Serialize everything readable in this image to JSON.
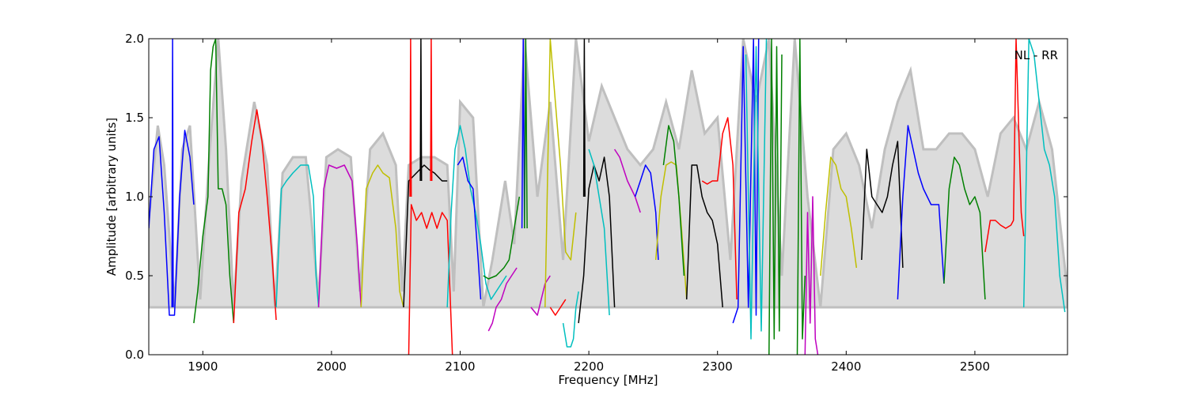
{
  "chart_data": {
    "type": "line",
    "title": "",
    "annotation": "NL - RR",
    "xlabel": "Frequency [MHz]",
    "ylabel": "Amplitude [arbitrary units]",
    "xlim": [
      1858,
      2572
    ],
    "ylim": [
      0.0,
      2.0
    ],
    "x_ticks": [
      1900,
      2000,
      2100,
      2200,
      2300,
      2400,
      2500
    ],
    "y_ticks": [
      0.0,
      0.5,
      1.0,
      1.5,
      2.0
    ],
    "x_tick_labels": [
      "1900",
      "2000",
      "2100",
      "2200",
      "2300",
      "2400",
      "2500"
    ],
    "y_tick_labels": [
      "0.0",
      "0.5",
      "1.0",
      "1.5",
      "2.0"
    ],
    "grid": false,
    "colors": {
      "envelope": "#bfbfbf",
      "blue": "#0000ff",
      "green": "#008000",
      "red": "#ff0000",
      "cyan": "#00bfbf",
      "magenta": "#bf00bf",
      "yellow": "#bfbf00",
      "black": "#000000"
    },
    "series": [
      {
        "color": "envelope",
        "x": [
          1858,
          1865,
          1870,
          1878,
          1884,
          1890,
          1898,
          1905,
          1912,
          1918,
          1924,
          1930,
          1940,
          1950,
          1956,
          1962,
          1970,
          1980,
          1990,
          1996,
          2005,
          2015,
          2022,
          2030,
          2040,
          2050,
          2055,
          2060,
          2070,
          2080,
          2090,
          2095,
          2100,
          2110,
          2118,
          2125,
          2135,
          2142,
          2150,
          2160,
          2170,
          2180,
          2190,
          2200,
          2210,
          2220,
          2230,
          2240,
          2250,
          2260,
          2270,
          2280,
          2290,
          2300,
          2310,
          2320,
          2330,
          2340,
          2350,
          2360,
          2370,
          2380,
          2390,
          2400,
          2410,
          2420,
          2430,
          2440,
          2450,
          2460,
          2470,
          2480,
          2490,
          2500,
          2510,
          2520,
          2530,
          2540,
          2550,
          2560,
          2572
        ],
        "y": [
          0.85,
          1.45,
          1.2,
          0.3,
          1.3,
          1.45,
          0.35,
          1.25,
          2.0,
          1.3,
          0.3,
          1.1,
          1.6,
          1.2,
          0.3,
          1.15,
          1.25,
          1.25,
          0.35,
          1.25,
          1.3,
          1.25,
          0.4,
          1.3,
          1.4,
          1.2,
          0.4,
          1.2,
          1.25,
          1.25,
          1.2,
          0.4,
          1.6,
          1.5,
          0.3,
          0.6,
          1.1,
          0.7,
          2.0,
          1.0,
          1.6,
          0.6,
          2.0,
          1.35,
          1.7,
          1.5,
          1.3,
          1.2,
          1.3,
          1.6,
          1.3,
          1.8,
          1.4,
          1.5,
          0.6,
          2.0,
          1.6,
          2.0,
          0.5,
          2.0,
          1.0,
          0.3,
          1.3,
          1.4,
          1.2,
          0.8,
          1.3,
          1.6,
          1.8,
          1.3,
          1.3,
          1.4,
          1.4,
          1.3,
          1.0,
          1.4,
          1.5,
          1.3,
          1.6,
          1.3,
          0.4
        ]
      },
      {
        "color": "blue",
        "x": [
          1858,
          1862,
          1866,
          1870,
          1874,
          1878,
          1882,
          1886,
          1890,
          1893
        ],
        "y": [
          0.8,
          1.3,
          1.38,
          0.9,
          0.25,
          0.25,
          1.0,
          1.42,
          1.25,
          0.95
        ]
      },
      {
        "color": "blue",
        "x": [
          1876,
          1876.5,
          1877
        ],
        "y": [
          0.3,
          2.0,
          0.3
        ]
      },
      {
        "color": "green",
        "x": [
          1893,
          1896,
          1900,
          1904,
          1906,
          1908,
          1910,
          1912,
          1915,
          1918,
          1921,
          1924
        ],
        "y": [
          0.2,
          0.4,
          0.75,
          1.0,
          1.8,
          1.95,
          2.0,
          1.05,
          1.05,
          0.95,
          0.5,
          0.2
        ]
      },
      {
        "color": "red",
        "x": [
          1924,
          1928,
          1933,
          1938,
          1942,
          1946,
          1950,
          1954,
          1957
        ],
        "y": [
          0.2,
          0.9,
          1.05,
          1.35,
          1.55,
          1.35,
          1.0,
          0.6,
          0.22
        ]
      },
      {
        "color": "cyan",
        "x": [
          1957,
          1961,
          1965,
          1970,
          1976,
          1982,
          1986,
          1988,
          1990
        ],
        "y": [
          0.3,
          1.05,
          1.1,
          1.15,
          1.2,
          1.2,
          1.0,
          0.5,
          0.3
        ]
      },
      {
        "color": "magenta",
        "x": [
          1990,
          1994,
          1998,
          2004,
          2010,
          2016,
          2020,
          2023
        ],
        "y": [
          0.3,
          1.05,
          1.2,
          1.18,
          1.2,
          1.1,
          0.7,
          0.3
        ]
      },
      {
        "color": "yellow",
        "x": [
          2023,
          2027,
          2032,
          2036,
          2040,
          2045,
          2050,
          2053,
          2056
        ],
        "y": [
          0.3,
          1.05,
          1.15,
          1.2,
          1.15,
          1.12,
          0.8,
          0.4,
          0.3
        ]
      },
      {
        "color": "black",
        "x": [
          2056,
          2060,
          2066,
          2072,
          2076,
          2080,
          2086,
          2090
        ],
        "y": [
          0.3,
          1.1,
          1.15,
          1.2,
          1.17,
          1.15,
          1.1,
          1.1
        ]
      },
      {
        "color": "red",
        "x": [
          2060,
          2062,
          2066,
          2070,
          2074,
          2078,
          2082,
          2086,
          2090,
          2094
        ],
        "y": [
          0.0,
          0.95,
          0.85,
          0.9,
          0.8,
          0.9,
          0.8,
          0.9,
          0.85,
          0.0
        ]
      },
      {
        "color": "red",
        "x": [
          2061,
          2061.5,
          2062
        ],
        "y": [
          1.0,
          2.0,
          1.0
        ]
      },
      {
        "color": "black",
        "x": [
          2069,
          2069.5,
          2070
        ],
        "y": [
          1.1,
          2.0,
          1.1
        ]
      },
      {
        "color": "red",
        "x": [
          2077,
          2077.5,
          2078
        ],
        "y": [
          1.1,
          2.0,
          1.1
        ]
      },
      {
        "color": "cyan",
        "x": [
          2090,
          2093,
          2096,
          2100,
          2104,
          2108,
          2112
        ],
        "y": [
          0.3,
          0.9,
          1.3,
          1.45,
          1.3,
          1.05,
          0.9
        ]
      },
      {
        "color": "blue",
        "x": [
          2098,
          2102,
          2106,
          2110,
          2114,
          2116
        ],
        "y": [
          1.2,
          1.25,
          1.1,
          1.05,
          0.6,
          0.35
        ]
      },
      {
        "color": "cyan",
        "x": [
          2112,
          2116,
          2120,
          2124,
          2128,
          2132,
          2136
        ],
        "y": [
          0.9,
          0.7,
          0.45,
          0.35,
          0.4,
          0.45,
          0.5
        ]
      },
      {
        "color": "magenta",
        "x": [
          2122,
          2125,
          2128,
          2132,
          2136,
          2140,
          2144
        ],
        "y": [
          0.15,
          0.2,
          0.3,
          0.35,
          0.45,
          0.5,
          0.55
        ]
      },
      {
        "color": "green",
        "x": [
          2118,
          2122,
          2128,
          2134,
          2138,
          2142,
          2146
        ],
        "y": [
          0.5,
          0.48,
          0.5,
          0.55,
          0.6,
          0.8,
          1.0
        ]
      },
      {
        "color": "blue",
        "x": [
          2148,
          2149,
          2150
        ],
        "y": [
          0.8,
          2.0,
          0.8
        ]
      },
      {
        "color": "green",
        "x": [
          2150,
          2151,
          2152
        ],
        "y": [
          0.8,
          2.0,
          0.8
        ]
      },
      {
        "color": "magenta",
        "x": [
          2155,
          2160,
          2166,
          2170
        ],
        "y": [
          0.3,
          0.25,
          0.45,
          0.5
        ]
      },
      {
        "color": "yellow",
        "x": [
          2166,
          2170,
          2174,
          2178,
          2182,
          2186,
          2190
        ],
        "y": [
          0.3,
          2.0,
          1.6,
          1.2,
          0.65,
          0.6,
          0.9
        ]
      },
      {
        "color": "red",
        "x": [
          2170,
          2174,
          2178,
          2182
        ],
        "y": [
          0.3,
          0.25,
          0.3,
          0.35
        ]
      },
      {
        "color": "cyan",
        "x": [
          2180,
          2183,
          2186,
          2188,
          2190,
          2192
        ],
        "y": [
          0.2,
          0.05,
          0.05,
          0.1,
          0.3,
          0.4
        ]
      },
      {
        "color": "black",
        "x": [
          2192,
          2196,
          2200,
          2204,
          2208,
          2212,
          2216,
          2220
        ],
        "y": [
          0.2,
          0.5,
          1.05,
          1.2,
          1.1,
          1.25,
          1.0,
          0.3
        ]
      },
      {
        "color": "black",
        "x": [
          2196,
          2196.5,
          2197
        ],
        "y": [
          1.0,
          2.0,
          1.0
        ]
      },
      {
        "color": "cyan",
        "x": [
          2200,
          2204,
          2208,
          2212,
          2216
        ],
        "y": [
          1.3,
          1.2,
          1.0,
          0.8,
          0.25
        ]
      },
      {
        "color": "magenta",
        "x": [
          2220,
          2224,
          2230,
          2236,
          2240
        ],
        "y": [
          1.3,
          1.25,
          1.1,
          1.0,
          0.9
        ]
      },
      {
        "color": "blue",
        "x": [
          2236,
          2240,
          2244,
          2248,
          2252,
          2254
        ],
        "y": [
          1.0,
          1.1,
          1.2,
          1.15,
          0.9,
          0.6
        ]
      },
      {
        "color": "yellow",
        "x": [
          2252,
          2256,
          2260,
          2264,
          2268,
          2272,
          2276
        ],
        "y": [
          0.6,
          1.0,
          1.2,
          1.22,
          1.2,
          0.8,
          0.35
        ]
      },
      {
        "color": "green",
        "x": [
          2258,
          2262,
          2266,
          2270,
          2274
        ],
        "y": [
          1.2,
          1.45,
          1.35,
          1.0,
          0.5
        ]
      },
      {
        "color": "black",
        "x": [
          2276,
          2280,
          2284,
          2288,
          2292,
          2296,
          2300,
          2304
        ],
        "y": [
          0.35,
          1.2,
          1.2,
          1.0,
          0.9,
          0.85,
          0.7,
          0.3
        ]
      },
      {
        "color": "red",
        "x": [
          2288,
          2292,
          2296,
          2300,
          2304,
          2308,
          2312,
          2315
        ],
        "y": [
          1.1,
          1.08,
          1.1,
          1.1,
          1.4,
          1.5,
          1.2,
          0.35
        ]
      },
      {
        "color": "blue",
        "x": [
          2312,
          2316,
          2320,
          2324,
          2328,
          2330,
          2332
        ],
        "y": [
          0.2,
          0.3,
          1.95,
          0.3,
          2.0,
          0.25,
          2.0
        ]
      },
      {
        "color": "cyan",
        "x": [
          2322,
          2326,
          2330,
          2334,
          2338
        ],
        "y": [
          1.9,
          0.1,
          1.95,
          0.15,
          2.0
        ]
      },
      {
        "color": "green",
        "x": [
          2340,
          2342,
          2344,
          2346,
          2348,
          2350
        ],
        "y": [
          0.0,
          2.0,
          0.1,
          1.95,
          0.15,
          1.9
        ]
      },
      {
        "color": "magenta",
        "x": [
          2368,
          2370,
          2372,
          2374,
          2376,
          2378
        ],
        "y": [
          0.0,
          0.9,
          0.2,
          1.0,
          0.1,
          0.0
        ]
      },
      {
        "color": "green",
        "x": [
          2362,
          2364,
          2366,
          2368
        ],
        "y": [
          0.0,
          2.0,
          0.1,
          0.5
        ]
      },
      {
        "color": "yellow",
        "x": [
          2380,
          2384,
          2388,
          2392,
          2396,
          2400,
          2404,
          2408
        ],
        "y": [
          0.5,
          0.9,
          1.25,
          1.2,
          1.05,
          1.0,
          0.8,
          0.55
        ]
      },
      {
        "color": "black",
        "x": [
          2412,
          2416,
          2420,
          2424,
          2428,
          2432,
          2436,
          2440,
          2444
        ],
        "y": [
          0.6,
          1.3,
          1.0,
          0.95,
          0.9,
          1.0,
          1.2,
          1.35,
          0.55
        ]
      },
      {
        "color": "blue",
        "x": [
          2440,
          2444,
          2448,
          2452,
          2456,
          2460,
          2466,
          2472,
          2476
        ],
        "y": [
          0.35,
          1.0,
          1.45,
          1.3,
          1.15,
          1.05,
          0.95,
          0.95,
          0.45
        ]
      },
      {
        "color": "green",
        "x": [
          2476,
          2480,
          2484,
          2488,
          2492,
          2496,
          2500,
          2504,
          2508
        ],
        "y": [
          0.45,
          1.05,
          1.25,
          1.2,
          1.05,
          0.95,
          1.0,
          0.9,
          0.35
        ]
      },
      {
        "color": "red",
        "x": [
          2508,
          2512,
          2516,
          2520,
          2524,
          2528,
          2530,
          2532,
          2536,
          2538
        ],
        "y": [
          0.65,
          0.85,
          0.85,
          0.82,
          0.8,
          0.82,
          0.85,
          2.0,
          0.9,
          0.75
        ]
      },
      {
        "color": "cyan",
        "x": [
          2538,
          2542,
          2546,
          2550,
          2554,
          2558,
          2562,
          2566,
          2570
        ],
        "y": [
          0.3,
          2.0,
          1.9,
          1.6,
          1.3,
          1.2,
          1.0,
          0.5,
          0.27
        ]
      }
    ]
  }
}
